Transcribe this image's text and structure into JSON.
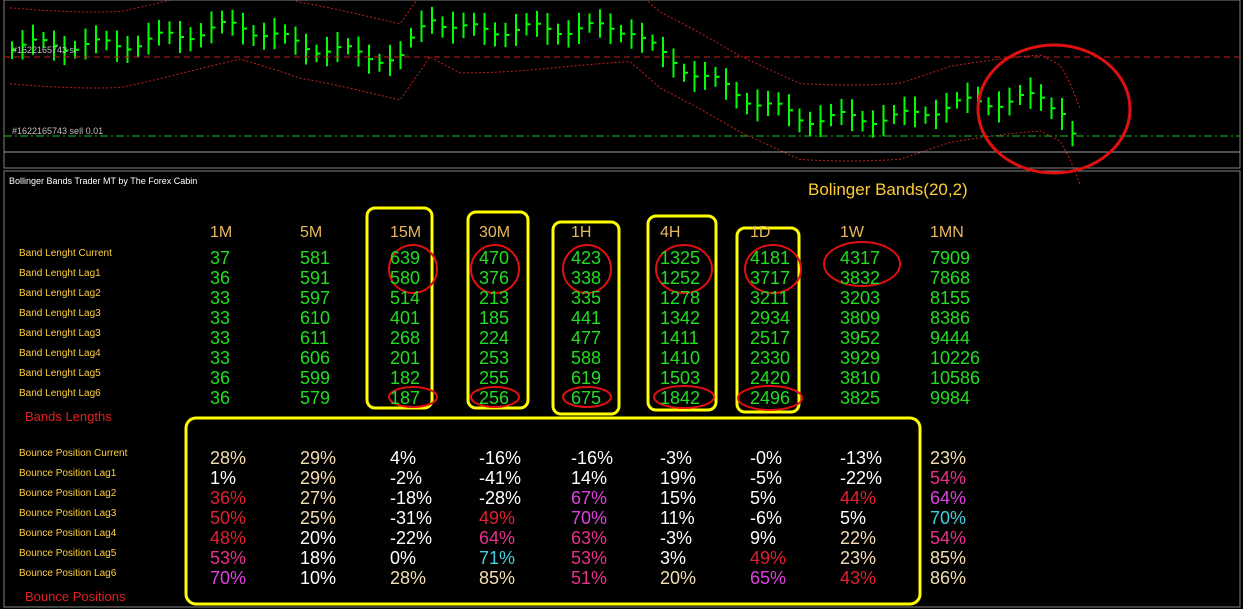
{
  "chart": {
    "labels": [
      "#1622165743 sl",
      "#1622165743 sell 0.01"
    ]
  },
  "indicator": {
    "title": "Bollinger Bands Trader MT by The Forex Cabin",
    "heading": "Bolinger Bands(20,2)",
    "columns": [
      "1M",
      "5M",
      "15M",
      "30M",
      "1H",
      "4H",
      "1D",
      "1W",
      "1MN"
    ],
    "value_color": "#22dd22",
    "band_rows": [
      {
        "label": "Band Lenght Current",
        "values": [
          37,
          581,
          639,
          470,
          423,
          1325,
          4181,
          4317,
          7909
        ]
      },
      {
        "label": "Band Lenght Lag1",
        "values": [
          36,
          591,
          580,
          376,
          338,
          1252,
          3717,
          3832,
          7868
        ]
      },
      {
        "label": "Band Lenght Lag2",
        "values": [
          33,
          597,
          514,
          213,
          335,
          1278,
          3211,
          3203,
          8155
        ]
      },
      {
        "label": "Band Lenght Lag3",
        "values": [
          33,
          610,
          401,
          185,
          441,
          1342,
          2934,
          3809,
          8386
        ]
      },
      {
        "label": "Band Lenght Lag3",
        "values": [
          33,
          611,
          268,
          224,
          477,
          1411,
          2517,
          3952,
          9444
        ]
      },
      {
        "label": "Band Lenght Lag4",
        "values": [
          33,
          606,
          201,
          253,
          588,
          1410,
          2330,
          3929,
          10226
        ]
      },
      {
        "label": "Band Lenght Lag5",
        "values": [
          36,
          599,
          182,
          255,
          619,
          1503,
          2420,
          3810,
          10586
        ]
      },
      {
        "label": "Band Lenght Lag6",
        "values": [
          36,
          579,
          187,
          256,
          675,
          1842,
          2496,
          3825,
          9984
        ]
      }
    ],
    "band_section": "Bands Lengths",
    "bounce_rows": [
      {
        "label": "Bounce Position Current",
        "values": [
          "28%",
          "29%",
          "4%",
          "-16%",
          "-16%",
          "-3%",
          "-0%",
          "-13%",
          "23%"
        ],
        "colors": [
          "#f5deb3",
          "#f5deb3",
          "#ffffff",
          "#ffffff",
          "#ffffff",
          "#ffffff",
          "#ffffff",
          "#ffffff",
          "#f5deb3"
        ]
      },
      {
        "label": "Bounce Position Lag1",
        "values": [
          "1%",
          "29%",
          "-2%",
          "-41%",
          "14%",
          "19%",
          "-5%",
          "-22%",
          "54%"
        ],
        "colors": [
          "#ffffff",
          "#f5deb3",
          "#ffffff",
          "#ffffff",
          "#ffffff",
          "#ffffff",
          "#ffffff",
          "#ffffff",
          "#e8308c"
        ]
      },
      {
        "label": "Bounce Position Lag2",
        "values": [
          "36%",
          "27%",
          "-18%",
          "-28%",
          "67%",
          "15%",
          "5%",
          "44%",
          "64%"
        ],
        "colors": [
          "#e02030",
          "#f5deb3",
          "#ffffff",
          "#ffffff",
          "#e040e0",
          "#ffffff",
          "#ffffff",
          "#e02030",
          "#e040e0"
        ]
      },
      {
        "label": "Bounce Position Lag3",
        "values": [
          "50%",
          "25%",
          "-31%",
          "49%",
          "70%",
          "11%",
          "-6%",
          "5%",
          "70%"
        ],
        "colors": [
          "#e02030",
          "#f5deb3",
          "#ffffff",
          "#e02030",
          "#e040e0",
          "#ffffff",
          "#ffffff",
          "#ffffff",
          "#40d0e0"
        ]
      },
      {
        "label": "Bounce Position Lag4",
        "values": [
          "48%",
          "20%",
          "-22%",
          "64%",
          "63%",
          "-3%",
          "9%",
          "22%",
          "54%"
        ],
        "colors": [
          "#e02030",
          "#ffffff",
          "#ffffff",
          "#e8308c",
          "#e8308c",
          "#ffffff",
          "#ffffff",
          "#f5deb3",
          "#e8308c"
        ]
      },
      {
        "label": "Bounce Position Lag5",
        "values": [
          "53%",
          "18%",
          "0%",
          "71%",
          "53%",
          "3%",
          "49%",
          "23%",
          "85%"
        ],
        "colors": [
          "#e8308c",
          "#ffffff",
          "#ffffff",
          "#40d0e0",
          "#e8308c",
          "#ffffff",
          "#e02030",
          "#f5deb3",
          "#f5deb3"
        ]
      },
      {
        "label": "Bounce Position Lag6",
        "values": [
          "70%",
          "10%",
          "28%",
          "85%",
          "51%",
          "20%",
          "65%",
          "43%",
          "86%"
        ],
        "colors": [
          "#e040e0",
          "#ffffff",
          "#f5deb3",
          "#f5deb3",
          "#e8308c",
          "#f5deb3",
          "#e040e0",
          "#e02030",
          "#f5deb3"
        ]
      }
    ],
    "bounce_section": "Bounce Positions"
  }
}
